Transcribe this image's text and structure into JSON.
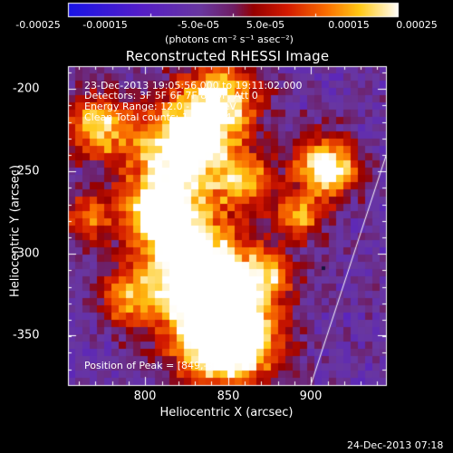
{
  "colorbar": {
    "tick_labels": [
      "-0.00025",
      "-0.00015",
      "-5.0e-05",
      "5.0e-05",
      "0.00015",
      "0.00025"
    ],
    "unit_label": "(photons cm⁻² s⁻¹ asec⁻²)"
  },
  "plot": {
    "title": "Reconstructed RHESSI Image",
    "xlabel": "Heliocentric X (arcsec)",
    "ylabel": "Heliocentric Y (arcsec)",
    "x_tick_labels": [
      "800",
      "850",
      "900"
    ],
    "y_tick_labels": [
      "-200",
      "-250",
      "-300",
      "-350"
    ]
  },
  "annotations": {
    "time_range": "23-Dec-2013 19:05:56.000 to 19:11:02.000",
    "detectors": "Detectors: 3F 5F 6F 7F 8F 9F, Att 0",
    "energy_range": "Energy Range: 12.0 - 25.0 keV",
    "method_counts": "Clean     Total counts: 1.46E+04",
    "peak_position": "Position of Peak = [849,-350]"
  },
  "timestamp": "24-Dec-2013 07:18"
}
